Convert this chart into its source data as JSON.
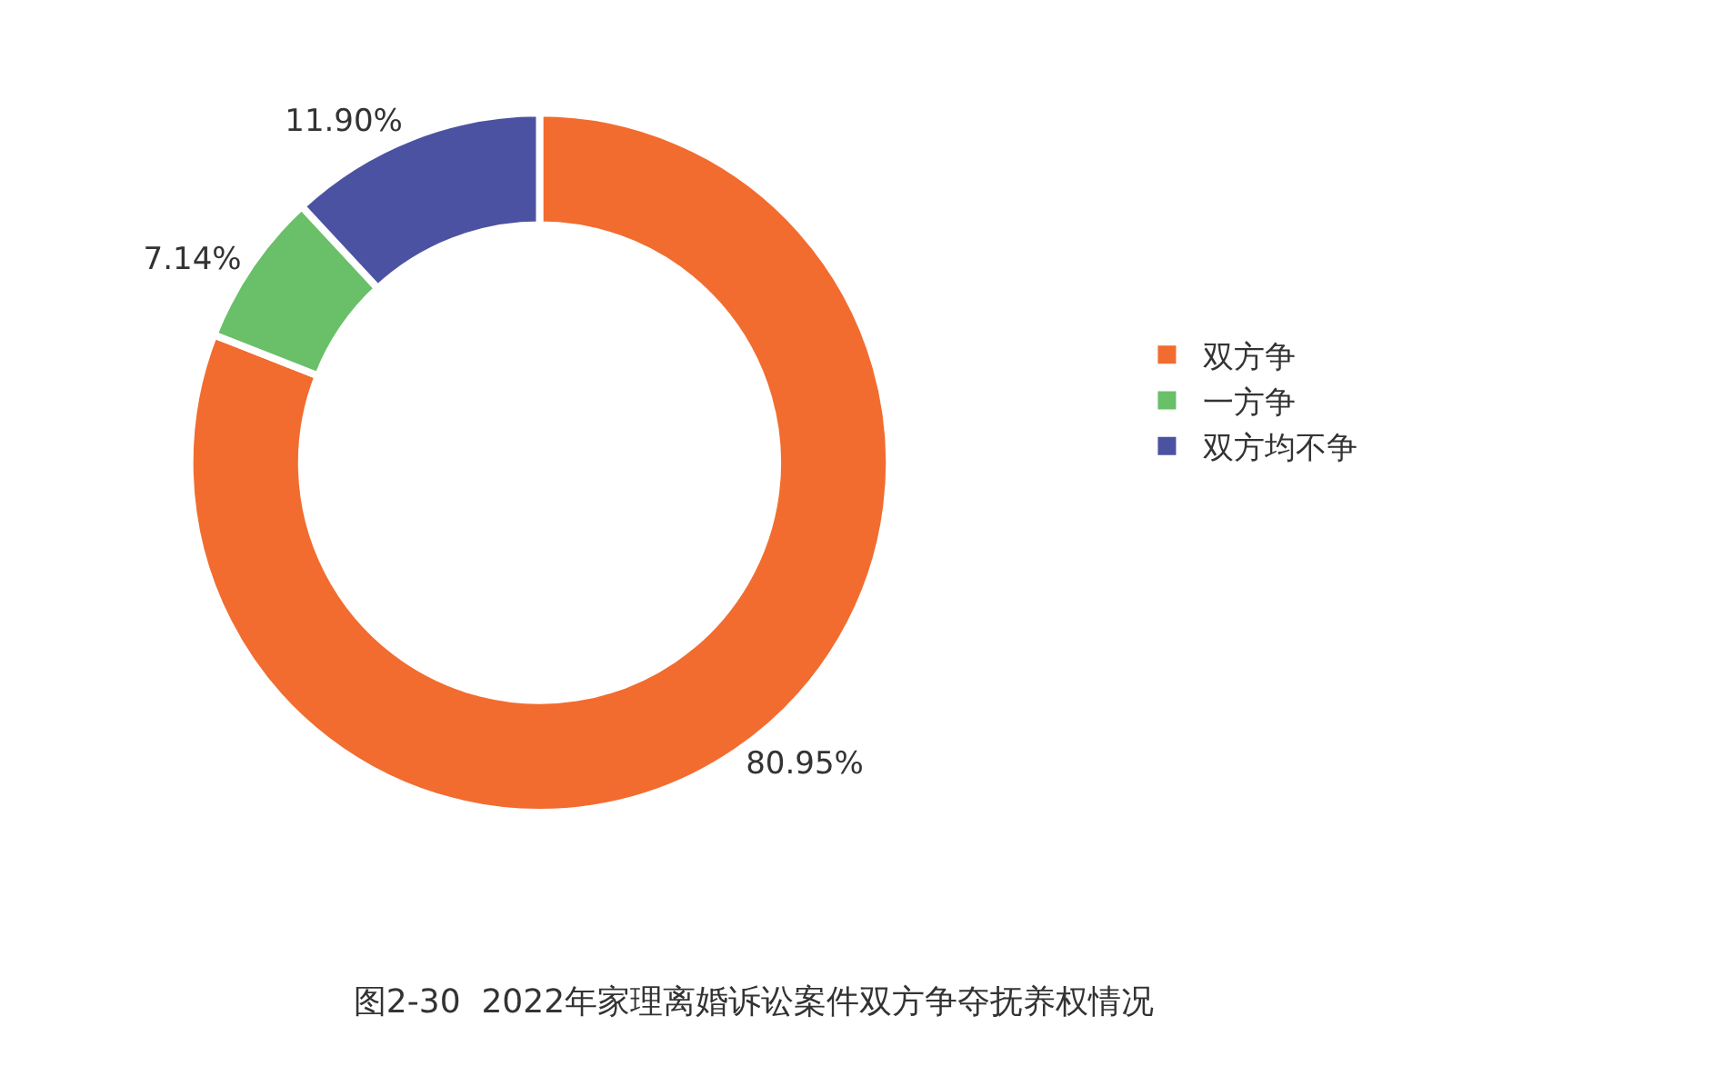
{
  "chart_data": {
    "type": "donut",
    "title": "图2-30  2022年家理离婚诉讼案件双方争夺抚养权情况",
    "categories": [
      "双方争",
      "一方争",
      "双方均不争"
    ],
    "values": [
      80.95,
      7.14,
      11.9
    ],
    "colors": [
      "#f26c2f",
      "#6abf69",
      "#4c52a2"
    ],
    "value_labels": [
      "80.95%",
      "7.14%",
      "11.90%"
    ],
    "legend": "right"
  }
}
